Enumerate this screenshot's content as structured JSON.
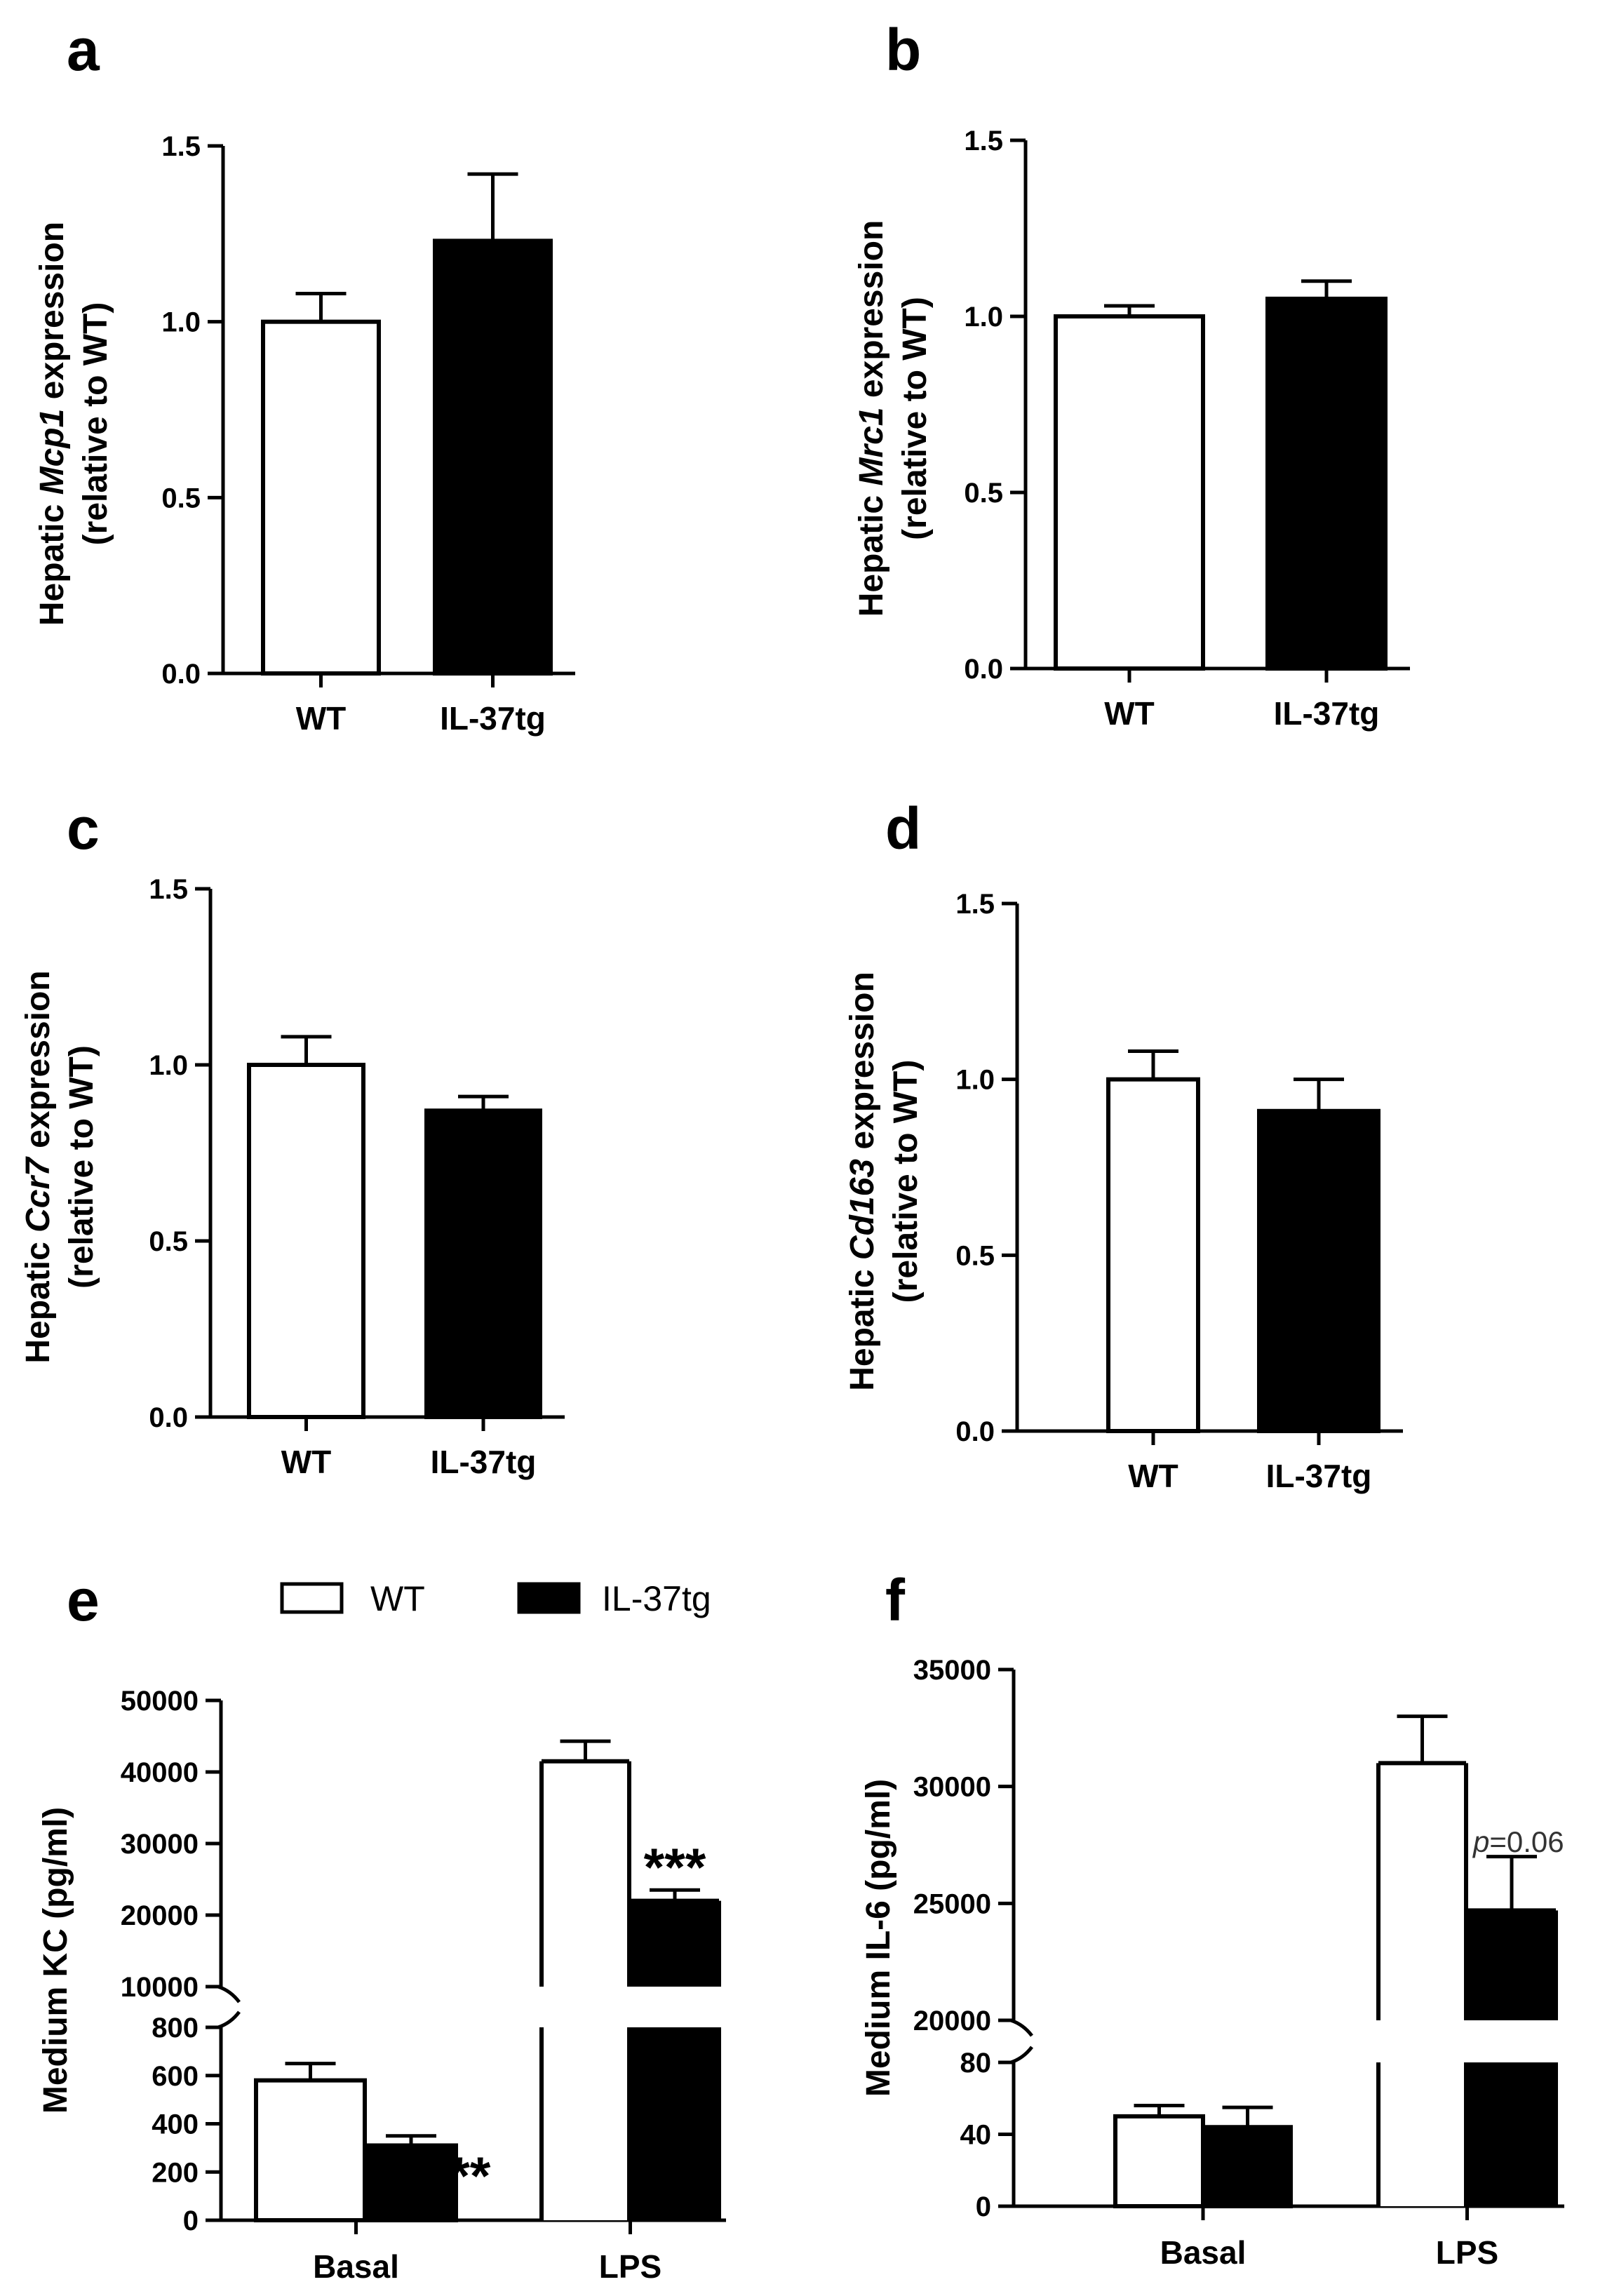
{
  "chart_data": [
    {
      "panel": "a",
      "type": "bar",
      "categories": [
        "WT",
        "IL-37tg"
      ],
      "values": [
        1.0,
        1.23
      ],
      "errors": [
        0.08,
        0.19
      ],
      "ylim": [
        0,
        1.5
      ],
      "yticks": [
        "0.0",
        "0.5",
        "1.0",
        "1.5"
      ],
      "ylabel_prefix": "Hepatic ",
      "ylabel_gene": "Mcp1",
      "ylabel_suffix": " expression",
      "ylabel_line2": "(relative to WT)",
      "colors": [
        "#ffffff",
        "#000000"
      ]
    },
    {
      "panel": "b",
      "type": "bar",
      "categories": [
        "WT",
        "IL-37tg"
      ],
      "values": [
        1.0,
        1.05
      ],
      "errors": [
        0.03,
        0.05
      ],
      "ylim": [
        0,
        1.5
      ],
      "yticks": [
        "0.0",
        "0.5",
        "1.0",
        "1.5"
      ],
      "ylabel_prefix": "Hepatic ",
      "ylabel_gene": "Mrc1",
      "ylabel_suffix": " expression",
      "ylabel_line2": "(relative to WT)",
      "colors": [
        "#ffffff",
        "#000000"
      ]
    },
    {
      "panel": "c",
      "type": "bar",
      "categories": [
        "WT",
        "IL-37tg"
      ],
      "values": [
        1.0,
        0.87
      ],
      "errors": [
        0.08,
        0.04
      ],
      "ylim": [
        0,
        1.5
      ],
      "yticks": [
        "0.0",
        "0.5",
        "1.0",
        "1.5"
      ],
      "ylabel_prefix": "Hepatic ",
      "ylabel_gene": "Ccr7",
      "ylabel_suffix": " expression",
      "ylabel_line2": "(relative to WT)",
      "colors": [
        "#ffffff",
        "#000000"
      ]
    },
    {
      "panel": "d",
      "type": "bar",
      "categories": [
        "WT",
        "IL-37tg"
      ],
      "values": [
        1.0,
        0.91
      ],
      "errors": [
        0.08,
        0.09
      ],
      "ylim": [
        0,
        1.5
      ],
      "yticks": [
        "0.0",
        "0.5",
        "1.0",
        "1.5"
      ],
      "ylabel_prefix": "Hepatic ",
      "ylabel_gene": "Cd163",
      "ylabel_suffix": " expression",
      "ylabel_line2": "(relative to WT)",
      "colors": [
        "#ffffff",
        "#000000"
      ]
    },
    {
      "panel": "e",
      "type": "bar",
      "broken_axis": true,
      "categories": [
        "Basal",
        "LPS"
      ],
      "series": [
        {
          "name": "WT",
          "values": [
            580,
            41500
          ],
          "errors": [
            70,
            2800
          ],
          "color": "#ffffff"
        },
        {
          "name": "IL-37tg",
          "values": [
            310,
            22000
          ],
          "errors": [
            40,
            1500
          ],
          "color": "#000000"
        }
      ],
      "lower_ylim": [
        0,
        800
      ],
      "lower_yticks": [
        "0",
        "200",
        "400",
        "600",
        "800"
      ],
      "upper_ylim": [
        10000,
        50000
      ],
      "upper_yticks": [
        "10000",
        "20000",
        "30000",
        "40000",
        "50000"
      ],
      "ylabel": "Medium KC (pg/ml)",
      "annotations": [
        "***",
        "***"
      ],
      "legend": {
        "items": [
          "WT",
          "IL-37tg"
        ],
        "placement": "top"
      }
    },
    {
      "panel": "f",
      "type": "bar",
      "broken_axis": true,
      "categories": [
        "Basal",
        "LPS"
      ],
      "series": [
        {
          "name": "WT",
          "values": [
            50,
            31000
          ],
          "errors": [
            6,
            2000
          ],
          "color": "#ffffff"
        },
        {
          "name": "IL-37tg",
          "values": [
            44,
            24700
          ],
          "errors": [
            11,
            2300
          ],
          "color": "#000000"
        }
      ],
      "lower_ylim": [
        0,
        80
      ],
      "lower_yticks": [
        "0",
        "40",
        "80"
      ],
      "upper_ylim": [
        20000,
        35000
      ],
      "upper_yticks": [
        "20000",
        "25000",
        "30000",
        "35000"
      ],
      "ylabel": "Medium IL-6 (pg/ml)",
      "annotation_p_label": "p",
      "annotation_p_value": "=0.06"
    }
  ]
}
